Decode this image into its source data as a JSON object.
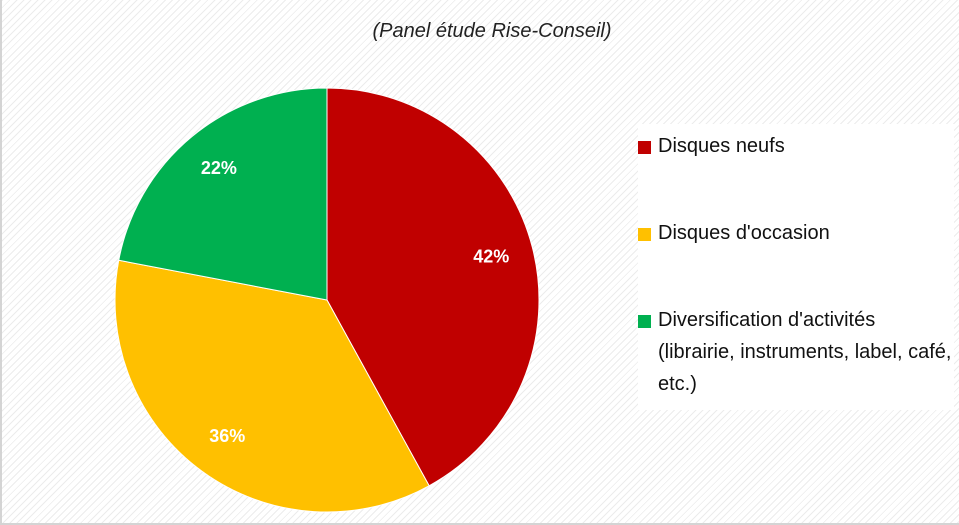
{
  "chart_data": {
    "type": "pie",
    "title": "",
    "subtitle": "(Panel étude Rise-Conseil)",
    "legend_position": "right",
    "slices": [
      {
        "label": "Disques neufs",
        "value": 42,
        "display": "42%",
        "color": "#c00000"
      },
      {
        "label": "Disques d'occasion",
        "value": 36,
        "display": "36%",
        "color": "#ffc000"
      },
      {
        "label": "Diversification d'activités (librairie, instruments, label, café, etc.)",
        "value": 22,
        "display": "22%",
        "color": "#00b050"
      }
    ]
  }
}
